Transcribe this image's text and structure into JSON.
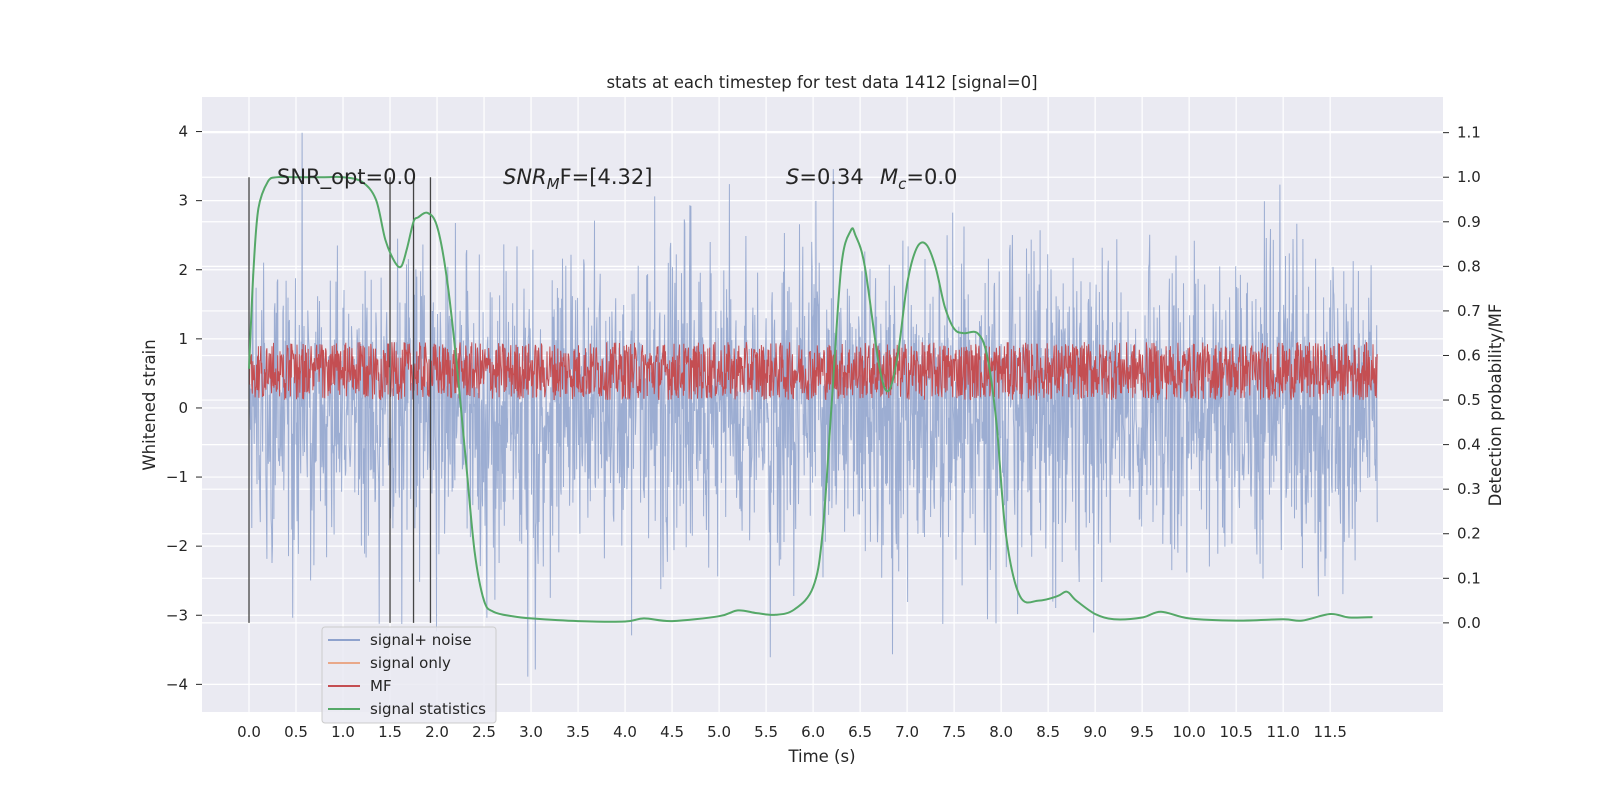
{
  "chart_data": {
    "type": "line",
    "title": "stats at each timestep for test data 1412 [signal=0]",
    "xlabel": "Time (s)",
    "ylabel": "Whitened strain",
    "y2label": "Detection probability/MF",
    "xlim": [
      -0.5,
      12.7
    ],
    "ylim": [
      -4.4,
      4.5
    ],
    "y2lim": [
      -0.2,
      1.18
    ],
    "xticks": [
      0.0,
      0.5,
      1.0,
      1.5,
      2.0,
      2.5,
      3.0,
      3.5,
      4.0,
      4.5,
      5.0,
      5.5,
      6.0,
      6.5,
      7.0,
      7.5,
      8.0,
      8.5,
      9.0,
      9.5,
      10.0,
      10.5,
      11.0,
      11.5
    ],
    "xtick_labels": [
      "0.0",
      "0.5",
      "1.0",
      "1.5",
      "2.0",
      "2.5",
      "3.0",
      "3.5",
      "4.0",
      "4.5",
      "5.0",
      "5.5",
      "6.0",
      "6.5",
      "7.0",
      "7.5",
      "8.0",
      "8.5",
      "9.0",
      "9.5",
      "10.0",
      "10.5",
      "11.0",
      "11.5"
    ],
    "yticks": [
      -4,
      -3,
      -2,
      -1,
      0,
      1,
      2,
      3,
      4
    ],
    "ytick_labels": [
      "−4",
      "−3",
      "−2",
      "−1",
      "0",
      "1",
      "2",
      "3",
      "4"
    ],
    "y2ticks": [
      0.0,
      0.1,
      0.2,
      0.3,
      0.4,
      0.5,
      0.6,
      0.7,
      0.8,
      0.9,
      1.0,
      1.1
    ],
    "y2tick_labels": [
      "0.0",
      "0.1",
      "0.2",
      "0.3",
      "0.4",
      "0.5",
      "0.6",
      "0.7",
      "0.8",
      "0.9",
      "1.0",
      "1.1"
    ],
    "grid": true,
    "legend_position": "bottom-left",
    "annotations": {
      "snr_opt": "SNR_opt=0.0",
      "snr_mf_label": "SNR",
      "snr_mf_sub": "M",
      "snr_mf_rest": "F=[4.32]",
      "s_label": "S",
      "s_value": "=0.34",
      "mc_label": "M",
      "mc_sub": "c",
      "mc_value": "=0.0"
    },
    "vlines_x": [
      0.0,
      1.5,
      1.75,
      1.93
    ],
    "series": [
      {
        "name": "signal+ noise",
        "color": "#8ea2cd",
        "axis": "left",
        "kind": "noise",
        "x_range": [
          0.0,
          12.0
        ],
        "amplitude_sigma": 1.0,
        "peak_range": [
          -3.9,
          4.1
        ]
      },
      {
        "name": "signal only",
        "color": "#e9a889",
        "axis": "left",
        "values": []
      },
      {
        "name": "MF",
        "color": "#c44e52",
        "axis": "right",
        "kind": "band",
        "x_range": [
          0.0,
          12.0
        ],
        "range": [
          0.5,
          0.63
        ]
      },
      {
        "name": "signal statistics",
        "color": "#55a868",
        "axis": "right",
        "x": [
          0.0,
          0.05,
          0.1,
          0.2,
          0.3,
          0.5,
          0.8,
          1.0,
          1.2,
          1.35,
          1.45,
          1.55,
          1.62,
          1.68,
          1.75,
          1.8,
          1.9,
          2.0,
          2.1,
          2.2,
          2.3,
          2.4,
          2.5,
          2.6,
          2.8,
          3.0,
          3.5,
          4.0,
          4.2,
          4.5,
          5.0,
          5.2,
          5.4,
          5.6,
          5.8,
          6.0,
          6.1,
          6.2,
          6.3,
          6.4,
          6.45,
          6.55,
          6.7,
          6.8,
          6.9,
          7.0,
          7.1,
          7.2,
          7.3,
          7.4,
          7.5,
          7.6,
          7.75,
          7.85,
          7.95,
          8.05,
          8.2,
          8.4,
          8.6,
          8.7,
          8.8,
          9.0,
          9.2,
          9.5,
          9.7,
          10.0,
          10.5,
          11.0,
          11.2,
          11.5,
          11.7,
          11.95
        ],
        "values": [
          0.57,
          0.8,
          0.93,
          0.99,
          1.0,
          1.0,
          1.0,
          1.0,
          0.99,
          0.95,
          0.86,
          0.81,
          0.8,
          0.84,
          0.9,
          0.91,
          0.92,
          0.89,
          0.78,
          0.6,
          0.38,
          0.16,
          0.05,
          0.025,
          0.015,
          0.01,
          0.004,
          0.003,
          0.01,
          0.004,
          0.015,
          0.028,
          0.022,
          0.018,
          0.03,
          0.08,
          0.2,
          0.5,
          0.8,
          0.88,
          0.87,
          0.8,
          0.58,
          0.52,
          0.6,
          0.76,
          0.84,
          0.85,
          0.8,
          0.71,
          0.66,
          0.65,
          0.65,
          0.6,
          0.45,
          0.2,
          0.06,
          0.05,
          0.06,
          0.07,
          0.05,
          0.02,
          0.008,
          0.012,
          0.025,
          0.01,
          0.005,
          0.008,
          0.005,
          0.02,
          0.012,
          0.013
        ]
      }
    ]
  }
}
